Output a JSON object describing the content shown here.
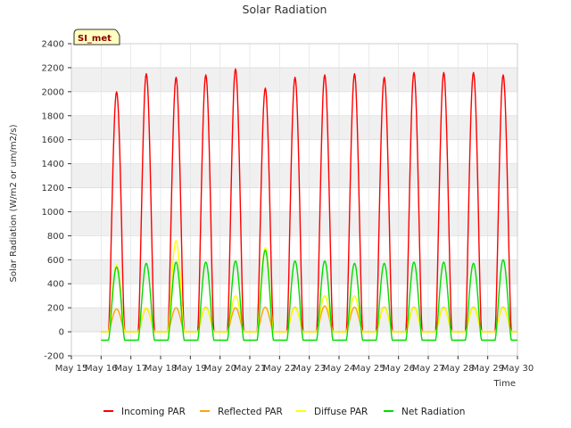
{
  "chart_data": {
    "type": "line",
    "title": "Solar Radiation",
    "xlabel": "Time",
    "ylabel": "Solar Radiation (W/m2 or um/m2/s)",
    "site_label": "SI_met",
    "ylim": [
      -200,
      2400
    ],
    "yticks": [
      -200,
      0,
      200,
      400,
      600,
      800,
      1000,
      1200,
      1400,
      1600,
      1800,
      2000,
      2200,
      2400
    ],
    "x_tick_labels": [
      "May 15",
      "May 16",
      "May 17",
      "May 18",
      "May 19",
      "May 20",
      "May 21",
      "May 22",
      "May 23",
      "May 24",
      "May 25",
      "May 26",
      "May 27",
      "May 28",
      "May 29",
      "May 30"
    ],
    "x_range_days": [
      0,
      15
    ],
    "data_days": [
      1,
      14
    ],
    "grid": true,
    "legend_position": "bottom",
    "series": [
      {
        "name": "Incoming PAR",
        "color": "#ff0000",
        "daily_peaks": [
          2000,
          2150,
          2120,
          2140,
          2190,
          2030,
          2120,
          2140,
          2150,
          2120,
          2160,
          2160,
          2160,
          2140
        ],
        "night_value": 0
      },
      {
        "name": "Reflected PAR",
        "color": "#ffa500",
        "daily_peaks": [
          190,
          195,
          200,
          205,
          200,
          205,
          205,
          215,
          205,
          205,
          205,
          205,
          205,
          205
        ],
        "night_value": 0
      },
      {
        "name": "Diffuse PAR",
        "color": "#ffff00",
        "daily_peaks": [
          560,
          200,
          760,
          200,
          300,
          700,
          200,
          300,
          300,
          200,
          200,
          200,
          200,
          200
        ],
        "night_value": 0
      },
      {
        "name": "Net Radiation",
        "color": "#00dd00",
        "daily_peaks": [
          540,
          570,
          580,
          580,
          590,
          680,
          590,
          590,
          570,
          570,
          580,
          580,
          570,
          600
        ],
        "night_value": -70
      }
    ]
  }
}
